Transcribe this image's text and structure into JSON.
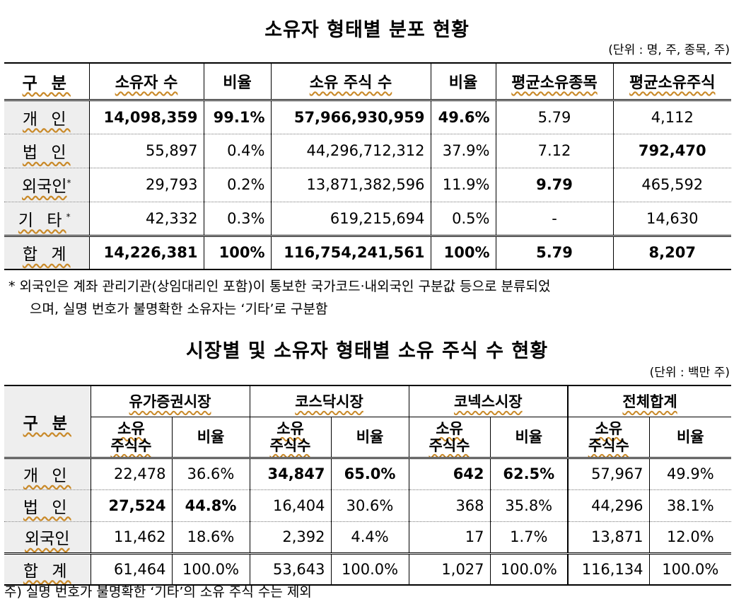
{
  "table1": {
    "title": "소유자 형태별 분포 현황",
    "unit": "(단위 : 명, 주, 종목, 주)",
    "headers": [
      "구  분",
      "소유자 수",
      "비율",
      "소유 주식 수",
      "비율",
      "평균소유종목",
      "평균소유주식"
    ],
    "rows": [
      {
        "label": "개 인",
        "holders": "14,098,359",
        "holders_ratio": "99.1%",
        "shares": "57,966,930,959",
        "shares_ratio": "49.6%",
        "avg_items": "5.79",
        "avg_shares": "4,112"
      },
      {
        "label": "법 인",
        "holders": "55,897",
        "holders_ratio": "0.4%",
        "shares": "44,296,712,312",
        "shares_ratio": "37.9%",
        "avg_items": "7.12",
        "avg_shares": "792,470"
      },
      {
        "label": "외국인",
        "sup": "*",
        "holders": "29,793",
        "holders_ratio": "0.2%",
        "shares": "13,871,382,596",
        "shares_ratio": "11.9%",
        "avg_items": "9.79",
        "avg_shares": "465,592"
      },
      {
        "label": "기 타",
        "sup": "*",
        "holders": "42,332",
        "holders_ratio": "0.3%",
        "shares": "619,215,694",
        "shares_ratio": "0.5%",
        "avg_items": "-",
        "avg_shares": "14,630"
      }
    ],
    "total": {
      "label": "합 계",
      "holders": "14,226,381",
      "holders_ratio": "100%",
      "shares": "116,754,241,561",
      "shares_ratio": "100%",
      "avg_items": "5.79",
      "avg_shares": "8,207"
    },
    "note_line1": "* 외국인은 계좌 관리기관(상임대리인 포함)이 통보한 국가코드·내외국인 구분값 등으로 분류되었",
    "note_line2": "으며, 실명 번호가 불명확한 소유자는 ‘기타’로 구분함"
  },
  "table2": {
    "title": "시장별 및 소유자 형태별 소유 주식 수 현황",
    "unit": "(단위 : 백만 주)",
    "label_header": "구  분",
    "markets": [
      "유가증권시장",
      "코스닥시장",
      "코넥스시장",
      "전체합계"
    ],
    "sub_shares_1": "소유",
    "sub_shares_2": "주식수",
    "sub_ratio": "비율",
    "rows": [
      {
        "label": "개 인",
        "values": [
          "22,478",
          "36.6%",
          "34,847",
          "65.0%",
          "642",
          "62.5%",
          "57,967",
          "49.9%"
        ]
      },
      {
        "label": "법 인",
        "values": [
          "27,524",
          "44.8%",
          "16,404",
          "30.6%",
          "368",
          "35.8%",
          "44,296",
          "38.1%"
        ]
      },
      {
        "label": "외국인",
        "values": [
          "11,462",
          "18.6%",
          "2,392",
          "4.4%",
          "17",
          "1.7%",
          "13,871",
          "12.0%"
        ]
      }
    ],
    "total": {
      "label": "합 계",
      "values": [
        "61,464",
        "100.0%",
        "53,643",
        "100.0%",
        "1,027",
        "100.0%",
        "116,134",
        "100.0%"
      ]
    },
    "note": "주) 실명 번호가 불명확한 ‘기타’의 소유 주식 수는 제외"
  }
}
